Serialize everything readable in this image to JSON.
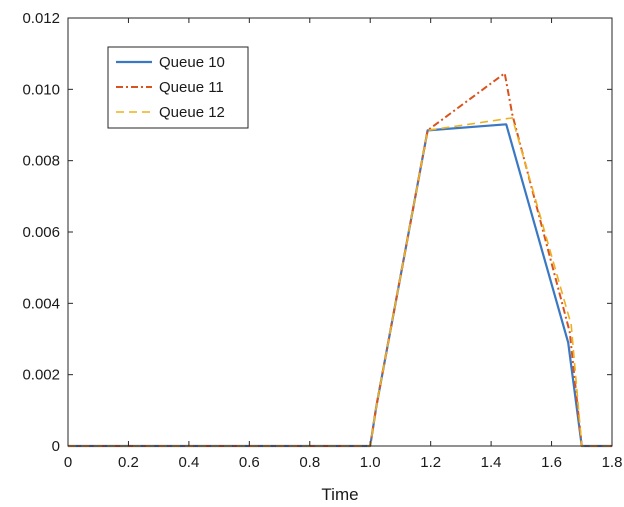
{
  "chart_data": {
    "type": "line",
    "xlabel": "Time",
    "ylabel": "",
    "title": "",
    "xlim": [
      0,
      1.8
    ],
    "ylim": [
      0,
      0.012
    ],
    "xticks": [
      0,
      0.2,
      0.4,
      0.6,
      0.8,
      1.0,
      1.2,
      1.4,
      1.6,
      1.8
    ],
    "xtick_labels": [
      "0",
      "0.2",
      "0.4",
      "0.6",
      "0.8",
      "1.0",
      "1.2",
      "1.4",
      "1.6",
      "1.8"
    ],
    "yticks": [
      0,
      0.002,
      0.004,
      0.006,
      0.008,
      0.01,
      0.012
    ],
    "ytick_labels": [
      "0",
      "0.002",
      "0.004",
      "0.006",
      "0.008",
      "0.010",
      "0.012"
    ],
    "grid": false,
    "legend_position": "top-left",
    "series": [
      {
        "name": "Queue 10",
        "color": "#3a78c4",
        "dash": "solid",
        "x": [
          0,
          1.0,
          1.02,
          1.19,
          1.45,
          1.655,
          1.7,
          1.8
        ],
        "y": [
          0,
          0,
          0.0011,
          0.00885,
          0.00902,
          0.0029,
          0,
          0
        ]
      },
      {
        "name": "Queue 11",
        "color": "#d9531e",
        "dash": "dashdot",
        "x": [
          0,
          1.0,
          1.02,
          1.19,
          1.445,
          1.47,
          1.66,
          1.7,
          1.8
        ],
        "y": [
          0,
          0,
          0.0011,
          0.00885,
          0.01045,
          0.0093,
          0.0032,
          0,
          0
        ]
      },
      {
        "name": "Queue 12",
        "color": "#edb120",
        "dash": "dashed",
        "x": [
          0,
          1.0,
          1.02,
          1.19,
          1.47,
          1.665,
          1.7,
          1.8
        ],
        "y": [
          0,
          0,
          0.0011,
          0.00885,
          0.0092,
          0.0034,
          0,
          0
        ]
      }
    ]
  }
}
